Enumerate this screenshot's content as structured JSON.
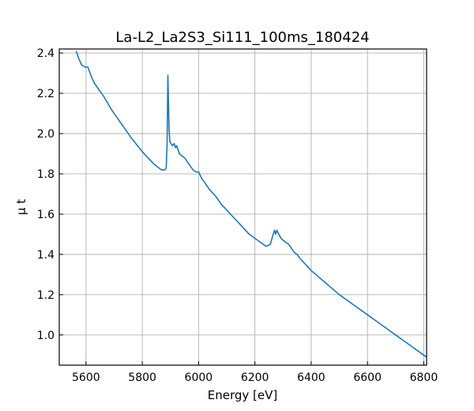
{
  "chart_data": {
    "type": "line",
    "title": "La-L2_La2S3_Si111_100ms_180424",
    "xlabel": "Energy [eV]",
    "ylabel": "μ t",
    "xlim": [
      5505,
      6810
    ],
    "ylim": [
      0.85,
      2.42
    ],
    "xticks": [
      5600,
      5800,
      6000,
      6200,
      6400,
      6600,
      6800
    ],
    "yticks": [
      1.0,
      1.2,
      1.4,
      1.6,
      1.8,
      2.0,
      2.2,
      2.4
    ],
    "xtick_labels": [
      "5600",
      "5800",
      "6000",
      "6200",
      "6400",
      "6600",
      "6800"
    ],
    "ytick_labels": [
      "1.0",
      "1.2",
      "1.4",
      "1.6",
      "1.8",
      "2.0",
      "2.2",
      "2.4"
    ],
    "grid": true,
    "line_color": "#1f77b4",
    "series": [
      {
        "x": [
          5565,
          5575,
          5585,
          5598,
          5607,
          5612,
          5620,
          5630,
          5645,
          5665,
          5690,
          5720,
          5760,
          5800,
          5840,
          5868,
          5880,
          5885,
          5888,
          5891,
          5893,
          5895,
          5898,
          5902,
          5907,
          5913,
          5918,
          5922,
          5927,
          5932,
          5940,
          5950,
          5960,
          5970,
          5980,
          5990,
          6000,
          6010,
          6020,
          6040,
          6060,
          6080,
          6100,
          6120,
          6140,
          6160,
          6180,
          6200,
          6220,
          6240,
          6255,
          6265,
          6270,
          6274,
          6278,
          6285,
          6293,
          6300,
          6310,
          6320,
          6330,
          6340,
          6350,
          6360,
          6380,
          6400,
          6450,
          6500,
          6550,
          6600,
          6650,
          6700,
          6750,
          6800,
          6810
        ],
        "y": [
          2.41,
          2.37,
          2.34,
          2.33,
          2.33,
          2.31,
          2.28,
          2.25,
          2.22,
          2.18,
          2.12,
          2.06,
          1.98,
          1.91,
          1.85,
          1.82,
          1.82,
          1.83,
          1.95,
          2.29,
          2.15,
          2.02,
          1.96,
          1.95,
          1.94,
          1.95,
          1.93,
          1.94,
          1.92,
          1.9,
          1.89,
          1.88,
          1.86,
          1.84,
          1.82,
          1.81,
          1.81,
          1.78,
          1.76,
          1.72,
          1.69,
          1.65,
          1.62,
          1.59,
          1.56,
          1.53,
          1.5,
          1.48,
          1.46,
          1.44,
          1.45,
          1.5,
          1.52,
          1.5,
          1.52,
          1.5,
          1.48,
          1.47,
          1.46,
          1.45,
          1.43,
          1.41,
          1.4,
          1.38,
          1.35,
          1.32,
          1.26,
          1.2,
          1.15,
          1.1,
          1.05,
          1.0,
          0.95,
          0.9,
          0.89
        ]
      }
    ]
  }
}
